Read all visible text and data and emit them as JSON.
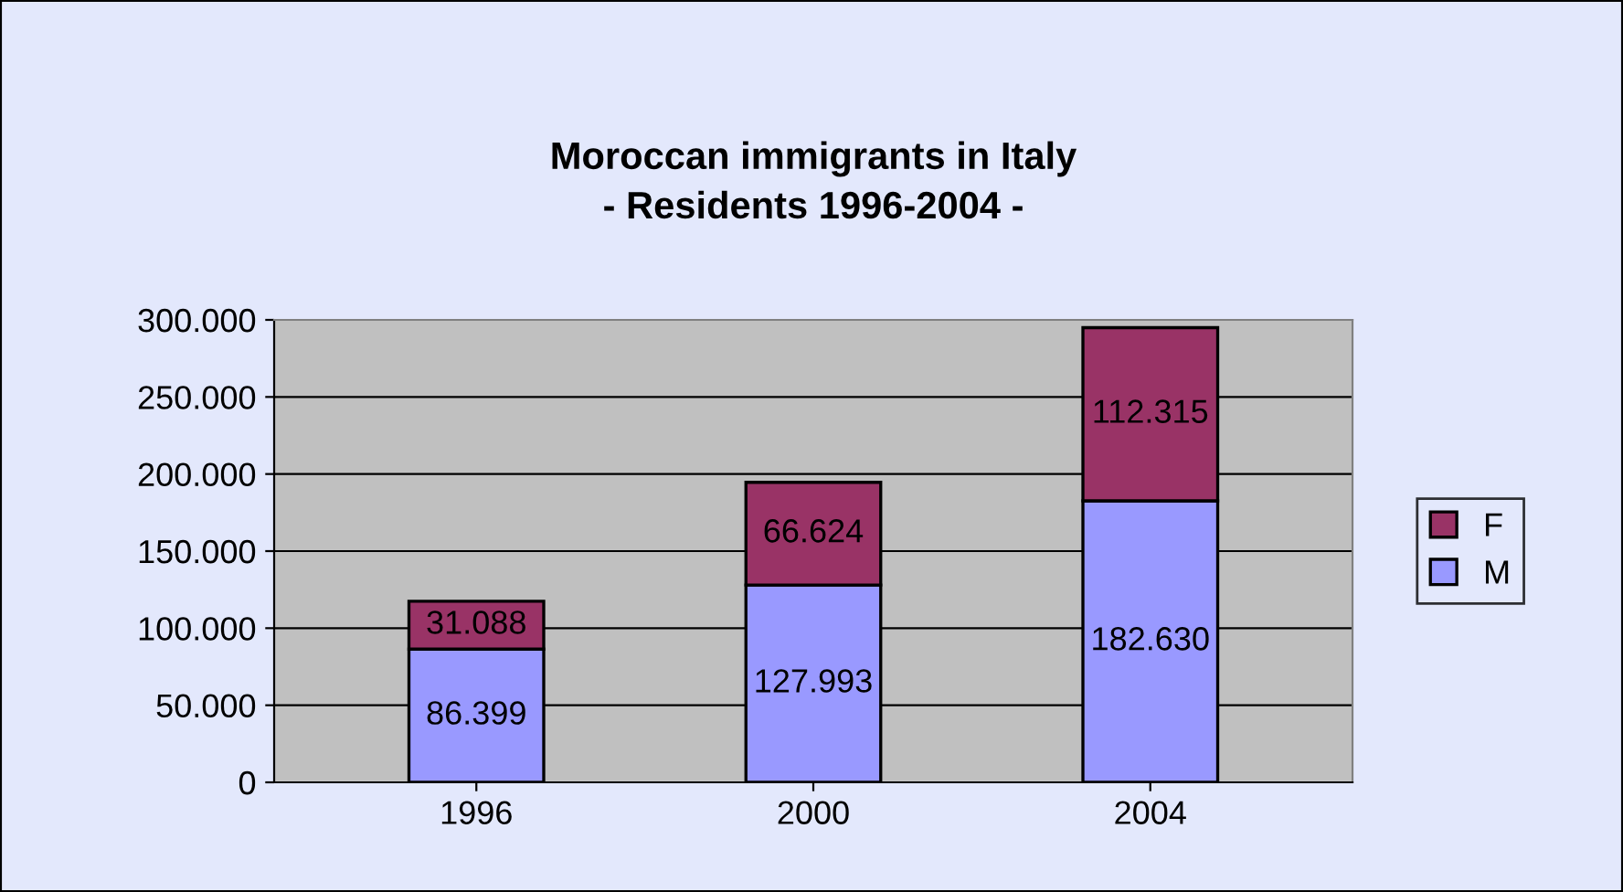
{
  "chart_data": {
    "type": "bar",
    "stacked": true,
    "title": "Moroccan immigrants in Italy\n- Residents 1996-2004 -",
    "categories": [
      "1996",
      "2000",
      "2004"
    ],
    "series": [
      {
        "name": "M",
        "color": "#9999ff",
        "values": [
          86399,
          127993,
          182630
        ],
        "value_labels": [
          "86.399",
          "127.993",
          "182.630"
        ]
      },
      {
        "name": "F",
        "color": "#993366",
        "values": [
          31088,
          66624,
          112315
        ],
        "value_labels": [
          "31.088",
          "66.624",
          "112.315"
        ]
      }
    ],
    "ylim": [
      0,
      300000
    ],
    "yticks": [
      {
        "value": 0,
        "label": "0"
      },
      {
        "value": 50000,
        "label": "50.000"
      },
      {
        "value": 100000,
        "label": "100.000"
      },
      {
        "value": 150000,
        "label": "150.000"
      },
      {
        "value": 200000,
        "label": "200.000"
      },
      {
        "value": 250000,
        "label": "250.000"
      },
      {
        "value": 300000,
        "label": "300.000"
      }
    ],
    "grid": "y",
    "legend": "right"
  }
}
